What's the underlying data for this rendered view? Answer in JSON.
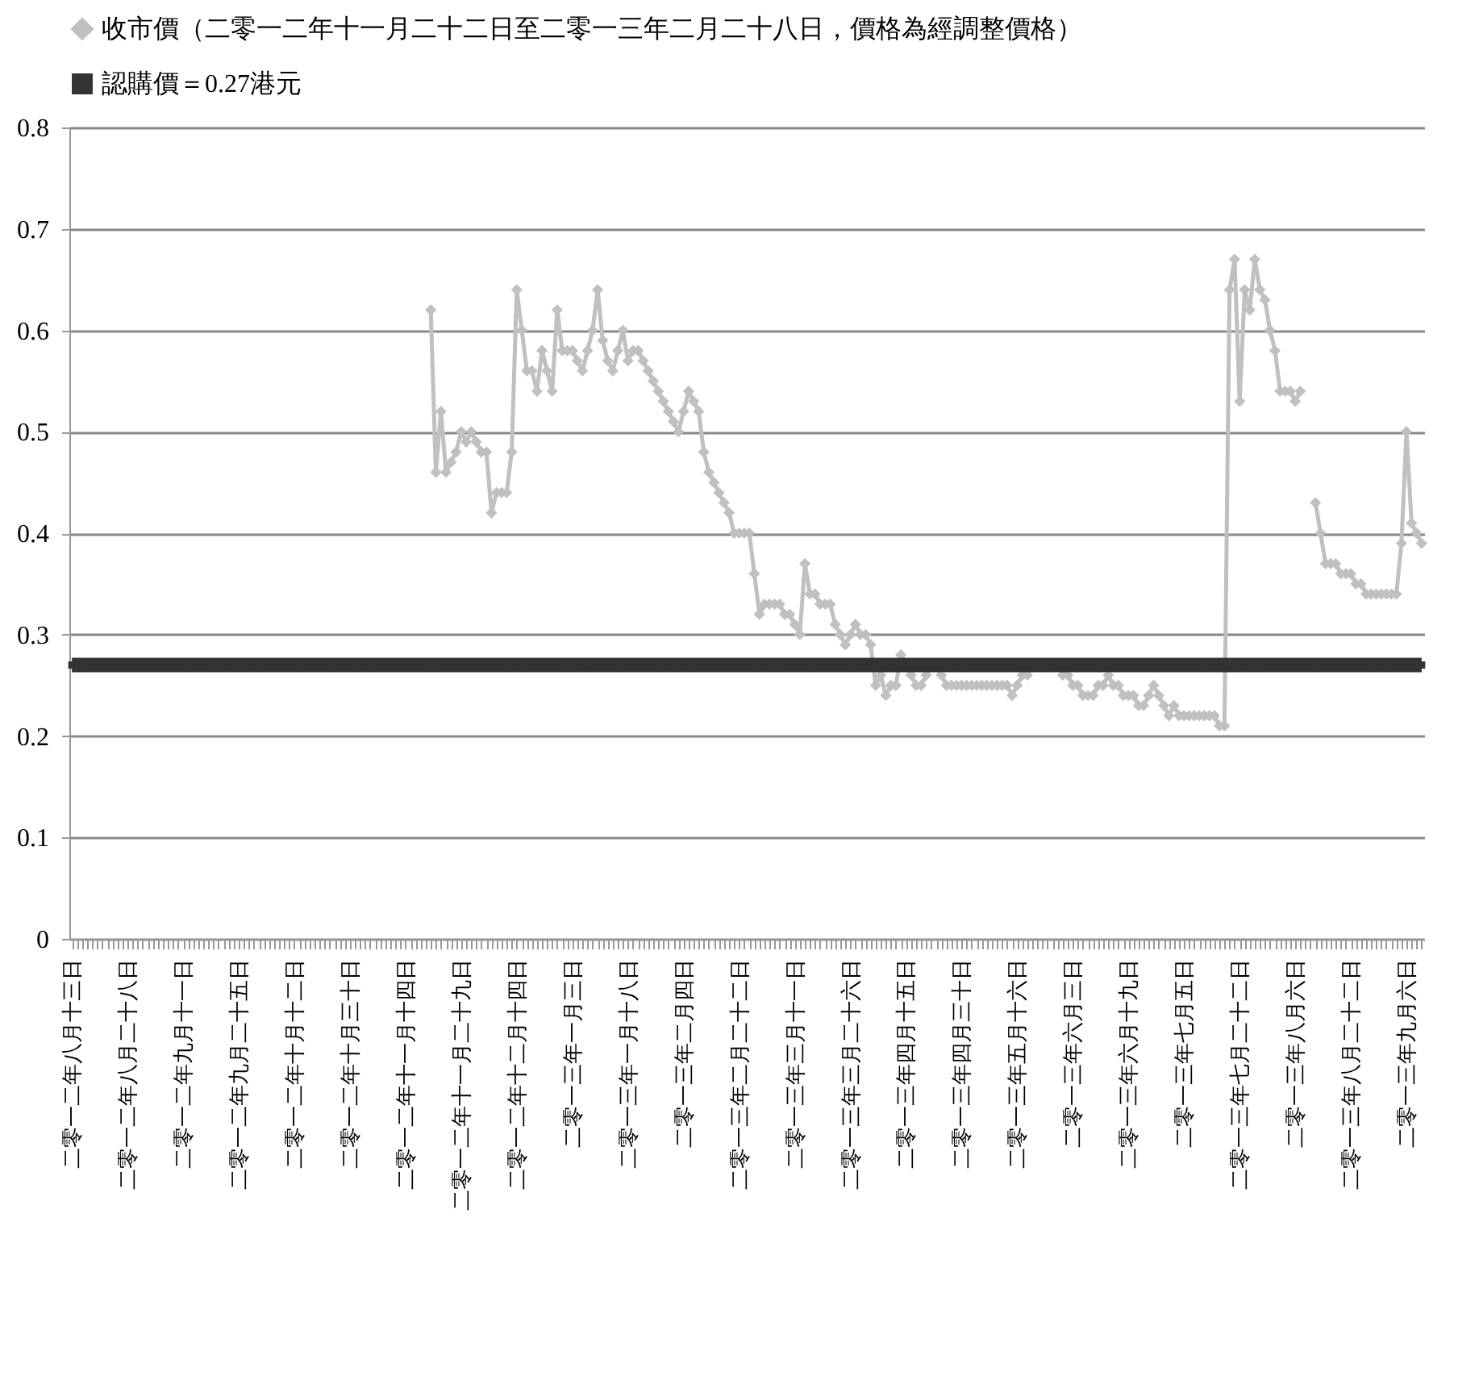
{
  "chart_data": {
    "type": "line",
    "legend": "top",
    "grid": "y",
    "ylim": [
      0,
      0.8
    ],
    "yticks": [
      0,
      0.1,
      0.2,
      0.3,
      0.4,
      0.5,
      0.6,
      0.7,
      0.8
    ],
    "categories": [
      "二零一二年八月十三日",
      null,
      null,
      null,
      null,
      null,
      null,
      null,
      null,
      null,
      null,
      "二零一二年八月二十八日",
      null,
      null,
      null,
      null,
      null,
      null,
      null,
      null,
      null,
      null,
      "二零一二年九月十一日",
      null,
      null,
      null,
      null,
      null,
      null,
      null,
      null,
      null,
      null,
      "二零一二年九月二十五日",
      null,
      null,
      null,
      null,
      null,
      null,
      null,
      null,
      null,
      null,
      "二零一二年十月十二日",
      null,
      null,
      null,
      null,
      null,
      null,
      null,
      null,
      null,
      null,
      "二零一二年十月三十日",
      null,
      null,
      null,
      null,
      null,
      null,
      null,
      null,
      null,
      null,
      "二零一二年十一月十四日",
      null,
      null,
      null,
      null,
      null,
      null,
      null,
      null,
      null,
      null,
      "二零一二年十一月二十九日",
      null,
      null,
      null,
      null,
      null,
      null,
      null,
      null,
      null,
      null,
      "二零一二年十二月十四日",
      null,
      null,
      null,
      null,
      null,
      null,
      null,
      null,
      null,
      null,
      "二零一三年一月三日",
      null,
      null,
      null,
      null,
      null,
      null,
      null,
      null,
      null,
      null,
      "二零一三年一月十八日",
      null,
      null,
      null,
      null,
      null,
      null,
      null,
      null,
      null,
      null,
      "二零一三年二月四日",
      null,
      null,
      null,
      null,
      null,
      null,
      null,
      null,
      null,
      null,
      "二零一三年二月二十二日",
      null,
      null,
      null,
      null,
      null,
      null,
      null,
      null,
      null,
      null,
      "二零一三年三月十一日",
      null,
      null,
      null,
      null,
      null,
      null,
      null,
      null,
      null,
      null,
      "二零一三年三月二十六日",
      null,
      null,
      null,
      null,
      null,
      null,
      null,
      null,
      null,
      null,
      "二零一三年四月十五日",
      null,
      null,
      null,
      null,
      null,
      null,
      null,
      null,
      null,
      null,
      "二零一三年四月三十日",
      null,
      null,
      null,
      null,
      null,
      null,
      null,
      null,
      null,
      null,
      "二零一三年五月十六日",
      null,
      null,
      null,
      null,
      null,
      null,
      null,
      null,
      null,
      null,
      "二零一三年六月三日",
      null,
      null,
      null,
      null,
      null,
      null,
      null,
      null,
      null,
      null,
      "二零一三年六月十九日",
      null,
      null,
      null,
      null,
      null,
      null,
      null,
      null,
      null,
      null,
      "二零一三年七月五日",
      null,
      null,
      null,
      null,
      null,
      null,
      null,
      null,
      null,
      null,
      "二零一三年七月二十二日",
      null,
      null,
      null,
      null,
      null,
      null,
      null,
      null,
      null,
      null,
      "二零一三年八月六日",
      null,
      null,
      null,
      null,
      null,
      null,
      null,
      null,
      null,
      null,
      "二零一三年八月二十二日",
      null,
      null,
      null,
      null,
      null,
      null,
      null,
      null,
      null,
      null,
      "二零一三年九月六日",
      null,
      null,
      null
    ],
    "series": [
      {
        "name": "收市價（二零一二年十一月二十二日至二零一三年二月二十八日，價格為經調整價格）",
        "color": "#c0c0c0",
        "marker": "diamond",
        "values": [
          null,
          null,
          null,
          null,
          null,
          null,
          null,
          null,
          null,
          null,
          null,
          null,
          null,
          null,
          null,
          null,
          null,
          null,
          null,
          null,
          null,
          null,
          null,
          null,
          null,
          null,
          null,
          null,
          null,
          null,
          null,
          null,
          null,
          null,
          null,
          null,
          null,
          null,
          null,
          null,
          null,
          null,
          null,
          null,
          null,
          null,
          null,
          null,
          null,
          null,
          null,
          null,
          null,
          null,
          null,
          null,
          null,
          null,
          null,
          null,
          null,
          null,
          null,
          null,
          null,
          null,
          null,
          null,
          null,
          null,
          null,
          0.62,
          0.46,
          0.52,
          0.46,
          0.47,
          0.48,
          0.5,
          0.49,
          0.5,
          0.49,
          0.48,
          0.48,
          0.42,
          0.44,
          0.44,
          0.44,
          0.48,
          0.64,
          0.6,
          0.56,
          0.56,
          0.54,
          0.58,
          0.56,
          0.54,
          0.62,
          0.58,
          0.58,
          0.58,
          0.57,
          0.56,
          0.58,
          0.6,
          0.64,
          0.59,
          0.57,
          0.56,
          0.58,
          0.6,
          0.57,
          0.58,
          0.58,
          0.57,
          0.56,
          0.55,
          0.54,
          0.53,
          0.52,
          0.51,
          0.5,
          0.52,
          0.54,
          0.53,
          0.52,
          0.48,
          0.46,
          0.45,
          0.44,
          0.43,
          0.42,
          0.4,
          0.4,
          0.4,
          0.4,
          0.36,
          0.32,
          0.33,
          0.33,
          0.33,
          0.33,
          0.32,
          0.32,
          0.31,
          0.3,
          0.37,
          0.34,
          0.34,
          0.33,
          0.33,
          0.33,
          0.31,
          0.3,
          0.29,
          0.3,
          0.31,
          0.3,
          0.3,
          0.29,
          0.25,
          0.26,
          0.24,
          0.25,
          0.25,
          0.28,
          0.27,
          0.26,
          0.25,
          0.25,
          0.26,
          0.27,
          0.27,
          0.26,
          0.25,
          0.25,
          0.25,
          0.25,
          0.25,
          0.25,
          0.25,
          0.25,
          0.25,
          0.25,
          0.25,
          0.25,
          0.25,
          0.24,
          0.25,
          0.26,
          0.26,
          0.27,
          0.27,
          0.27,
          0.27,
          0.27,
          0.27,
          0.26,
          0.26,
          0.25,
          0.25,
          0.24,
          0.24,
          0.24,
          0.25,
          0.25,
          0.26,
          0.25,
          0.25,
          0.24,
          0.24,
          0.24,
          0.23,
          0.23,
          0.24,
          0.25,
          0.24,
          0.23,
          0.22,
          0.23,
          0.22,
          0.22,
          0.22,
          0.22,
          0.22,
          0.22,
          0.22,
          0.22,
          0.21,
          0.21,
          0.64,
          0.67,
          0.53,
          0.64,
          0.62,
          0.67,
          0.64,
          0.63,
          0.6,
          0.58,
          0.54,
          0.54,
          0.54,
          0.53,
          0.54,
          null,
          null,
          0.43,
          0.4,
          0.37,
          0.37,
          0.37,
          0.36,
          0.36,
          0.36,
          0.35,
          0.35,
          0.34,
          0.34,
          0.34,
          0.34,
          0.34,
          0.34,
          0.34,
          0.39,
          0.5,
          0.41,
          0.4,
          0.39
        ]
      },
      {
        "name": "認購價＝0.27港元",
        "color": "#333333",
        "marker": "square",
        "values": [
          0.27,
          0.27,
          0.27,
          0.27,
          0.27,
          0.27,
          0.27,
          0.27,
          0.27,
          0.27,
          0.27,
          0.27,
          0.27,
          0.27,
          0.27,
          0.27,
          0.27,
          0.27,
          0.27,
          0.27,
          0.27,
          0.27,
          0.27,
          0.27,
          0.27,
          0.27,
          0.27,
          0.27,
          0.27,
          0.27,
          0.27,
          0.27,
          0.27,
          0.27,
          0.27,
          0.27,
          0.27,
          0.27,
          0.27,
          0.27,
          0.27,
          0.27,
          0.27,
          0.27,
          0.27,
          0.27,
          0.27,
          0.27,
          0.27,
          0.27,
          0.27,
          0.27,
          0.27,
          0.27,
          0.27,
          0.27,
          0.27,
          0.27,
          0.27,
          0.27,
          0.27,
          0.27,
          0.27,
          0.27,
          0.27,
          0.27,
          0.27,
          0.27,
          0.27,
          0.27,
          0.27,
          0.27,
          0.27,
          0.27,
          0.27,
          0.27,
          0.27,
          0.27,
          0.27,
          0.27,
          0.27,
          0.27,
          0.27,
          0.27,
          0.27,
          0.27,
          0.27,
          0.27,
          0.27,
          0.27,
          0.27,
          0.27,
          0.27,
          0.27,
          0.27,
          0.27,
          0.27,
          0.27,
          0.27,
          0.27,
          0.27,
          0.27,
          0.27,
          0.27,
          0.27,
          0.27,
          0.27,
          0.27,
          0.27,
          0.27,
          0.27,
          0.27,
          0.27,
          0.27,
          0.27,
          0.27,
          0.27,
          0.27,
          0.27,
          0.27,
          0.27,
          0.27,
          0.27,
          0.27,
          0.27,
          0.27,
          0.27,
          0.27,
          0.27,
          0.27,
          0.27,
          0.27,
          0.27,
          0.27,
          0.27,
          0.27,
          0.27,
          0.27,
          0.27,
          0.27,
          0.27,
          0.27,
          0.27,
          0.27,
          0.27,
          0.27,
          0.27,
          0.27,
          0.27,
          0.27,
          0.27,
          0.27,
          0.27,
          0.27,
          0.27,
          0.27,
          0.27,
          0.27,
          0.27,
          0.27,
          0.27,
          0.27,
          0.27,
          0.27,
          0.27,
          0.27,
          0.27,
          0.27,
          0.27,
          0.27,
          0.27,
          0.27,
          0.27,
          0.27,
          0.27,
          0.27,
          0.27,
          0.27,
          0.27,
          0.27,
          0.27,
          0.27,
          0.27,
          0.27,
          0.27,
          0.27,
          0.27,
          0.27,
          0.27,
          0.27,
          0.27,
          0.27,
          0.27,
          0.27,
          0.27,
          0.27,
          0.27,
          0.27,
          0.27,
          0.27,
          0.27,
          0.27,
          0.27,
          0.27,
          0.27,
          0.27,
          0.27,
          0.27,
          0.27,
          0.27,
          0.27,
          0.27,
          0.27,
          0.27,
          0.27,
          0.27,
          0.27,
          0.27,
          0.27,
          0.27,
          0.27,
          0.27,
          0.27,
          0.27,
          0.27,
          0.27,
          0.27,
          0.27,
          0.27,
          0.27,
          0.27,
          0.27,
          0.27,
          0.27,
          0.27,
          0.27,
          0.27,
          0.27,
          0.27,
          0.27,
          0.27,
          0.27,
          0.27,
          0.27,
          0.27,
          0.27,
          0.27,
          0.27,
          0.27,
          0.27,
          0.27,
          0.27,
          0.27,
          0.27,
          0.27,
          0.27,
          0.27,
          0.27,
          0.27,
          0.27,
          0.27,
          0.27,
          0.27,
          0.27,
          0.27,
          0.27,
          0.27,
          0.27
        ]
      }
    ]
  }
}
